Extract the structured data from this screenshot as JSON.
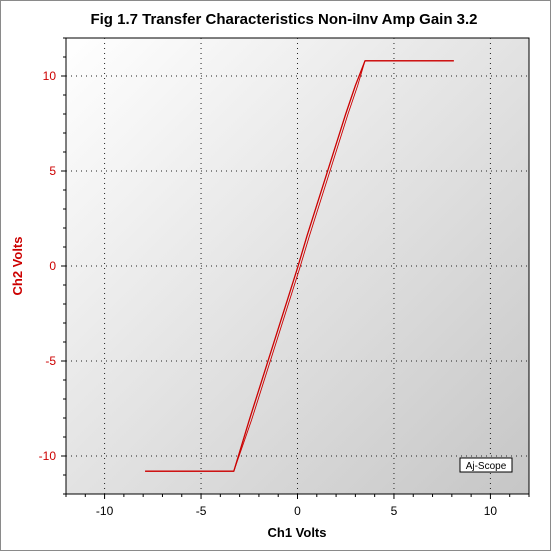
{
  "chart_data": {
    "type": "line",
    "title": "Fig 1.7 Transfer Characteristics Non-iInv Amp Gain 3.2",
    "xlabel": "Ch1 Volts",
    "ylabel": "Ch2 Volts",
    "xlim": [
      -12,
      12
    ],
    "ylim": [
      -12,
      12
    ],
    "xticks": [
      -10,
      -5,
      0,
      5,
      10
    ],
    "yticks": [
      -10,
      -5,
      0,
      5,
      10
    ],
    "xtick_labels": [
      "-10",
      "-5",
      "0",
      "5",
      "10"
    ],
    "ytick_labels": [
      "-10",
      "-5",
      "0",
      "5",
      "10"
    ],
    "grid": true,
    "series": [
      {
        "color": "#cc0000",
        "x": [
          -7.9,
          -3.3,
          -2.5,
          -1.5,
          -0.5,
          0.0,
          0.5,
          1.5,
          2.5,
          3.0,
          3.5,
          8.1
        ],
        "y": [
          -10.8,
          -10.8,
          -8.1,
          -4.9,
          -1.7,
          -0.1,
          1.6,
          4.8,
          8.0,
          9.5,
          10.8,
          10.8
        ]
      }
    ],
    "colors": {
      "line": "#cc0000",
      "ylabel": "#cc0000",
      "yticks": "#cc0000",
      "xticks": "#000000"
    }
  },
  "badge": "Aj-Scope"
}
